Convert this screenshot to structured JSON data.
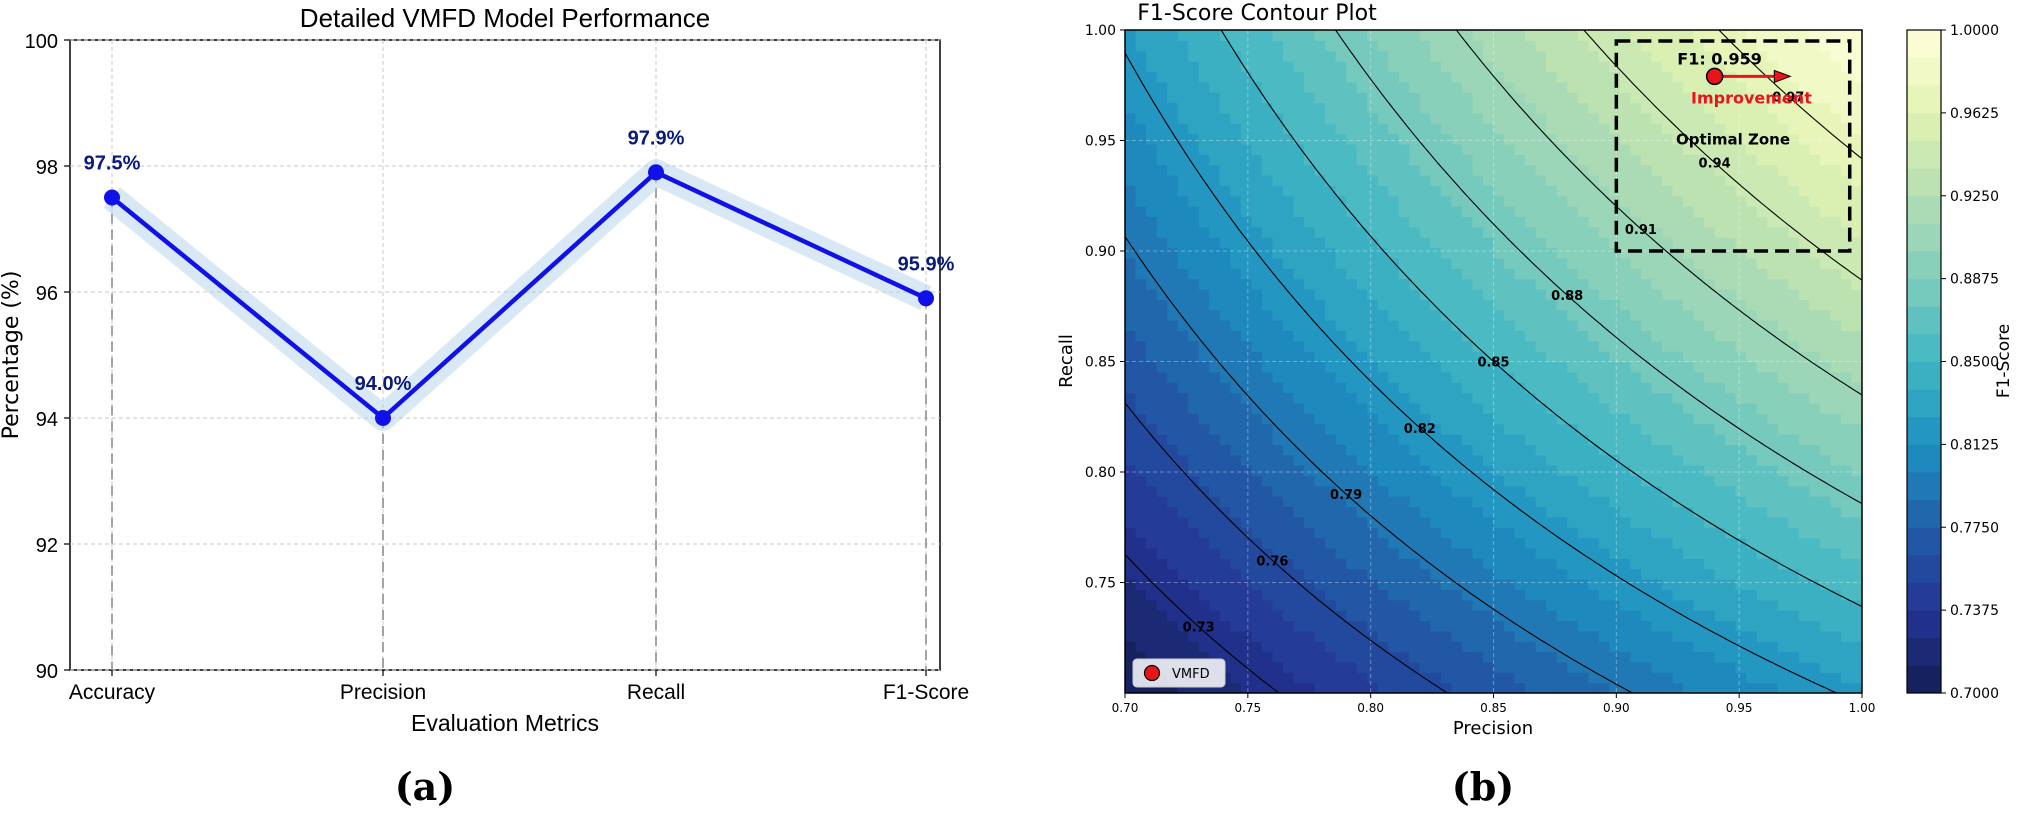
{
  "chart_data": [
    {
      "type": "line",
      "panel_label": "(a)",
      "title": "Detailed VMFD Model Performance",
      "xlabel": "Evaluation Metrics",
      "ylabel": "Percentage (%)",
      "categories": [
        "Accuracy",
        "Precision",
        "Recall",
        "F1-Score"
      ],
      "values": [
        97.5,
        94.0,
        97.9,
        95.9
      ],
      "data_labels": [
        "97.5%",
        "94.0%",
        "97.9%",
        "95.9%"
      ],
      "ylim": [
        90,
        100
      ],
      "yticks": [
        90,
        92,
        94,
        96,
        98,
        100
      ],
      "grid": true,
      "color": "#1010e8",
      "label_color": "#0a1a7a"
    },
    {
      "type": "heatmap",
      "panel_label": "(b)",
      "title": "F1-Score Contour Plot",
      "xlabel": "Precision",
      "ylabel": "Recall",
      "xlim": [
        0.7,
        1.0
      ],
      "ylim": [
        0.7,
        1.0
      ],
      "xticks": [
        0.7,
        0.75,
        0.8,
        0.85,
        0.9,
        0.95,
        1.0
      ],
      "yticks": [
        0.75,
        0.8,
        0.85,
        0.9,
        0.95,
        1.0
      ],
      "contour_levels": [
        0.73,
        0.76,
        0.79,
        0.82,
        0.85,
        0.88,
        0.91,
        0.94,
        0.97
      ],
      "fill_step": 0.0125,
      "colorbar": {
        "label": "F1-Score",
        "ticks": [
          "0.7000",
          "0.7375",
          "0.7750",
          "0.8125",
          "0.8500",
          "0.8875",
          "0.9250",
          "0.9625",
          "1.0000"
        ],
        "range": [
          0.7,
          1.0
        ]
      },
      "point": {
        "label": "VMFD",
        "precision": 0.94,
        "recall": 0.979,
        "annotation": "F1: 0.959",
        "color": "#e8141c"
      },
      "improvement_arrow": {
        "from": [
          0.94,
          0.979
        ],
        "to": [
          0.97,
          0.979
        ],
        "label": "Improvement",
        "color": "#e8141c"
      },
      "optimal_zone": {
        "label": "Optimal Zone",
        "precision": [
          0.9,
          0.995
        ],
        "recall": [
          0.9,
          0.995
        ]
      },
      "legend": {
        "position": "lower-left",
        "entries": [
          "VMFD"
        ]
      }
    }
  ]
}
